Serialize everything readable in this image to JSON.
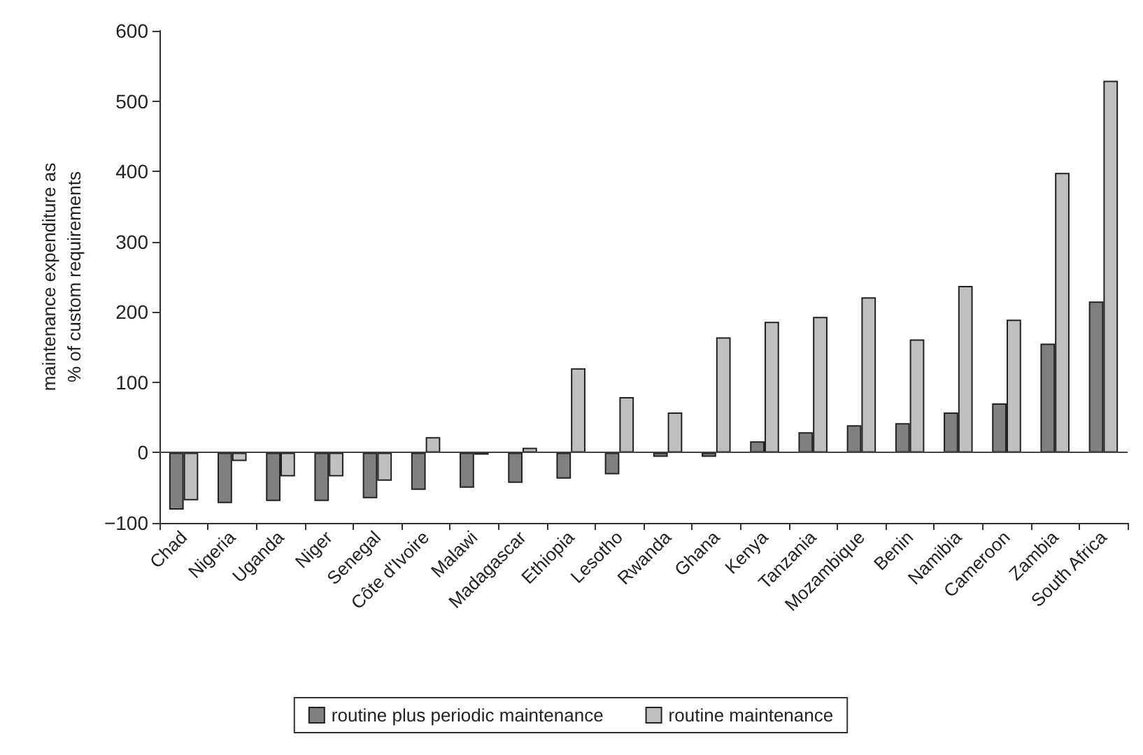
{
  "chart_data": {
    "type": "bar",
    "ylabel": "maintenance expenditure as\n% of custom requirements",
    "categories": [
      "Chad",
      "Nigeria",
      "Uganda",
      "Niger",
      "Senegal",
      "Côte d'Ivoire",
      "Malawi",
      "Madagascar",
      "Ethiopia",
      "Lesotho",
      "Rwanda",
      "Ghana",
      "Kenya",
      "Tanzania",
      "Mozambique",
      "Benin",
      "Namibia",
      "Cameroon",
      "Zambia",
      "South Africa"
    ],
    "series": [
      {
        "name": "routine plus periodic maintenance",
        "color": "#808080",
        "values": [
          -81,
          -72,
          -69,
          -69,
          -65,
          -53,
          -50,
          -43,
          -37,
          -31,
          -6,
          -6,
          16,
          29,
          39,
          42,
          57,
          70,
          155,
          215
        ]
      },
      {
        "name": "routine maintenance",
        "color": "#c0c0c0",
        "values": [
          -68,
          -12,
          -34,
          -34,
          -40,
          22,
          -3,
          7,
          120,
          79,
          57,
          164,
          186,
          193,
          221,
          161,
          237,
          189,
          398,
          529
        ]
      }
    ],
    "ylim": [
      -100,
      600
    ],
    "yticks": [
      -100,
      0,
      100,
      200,
      300,
      400,
      500,
      600
    ],
    "grid": false,
    "legend": "bottom",
    "ref_lines": [
      {
        "axis": "y",
        "value": 0
      }
    ]
  }
}
